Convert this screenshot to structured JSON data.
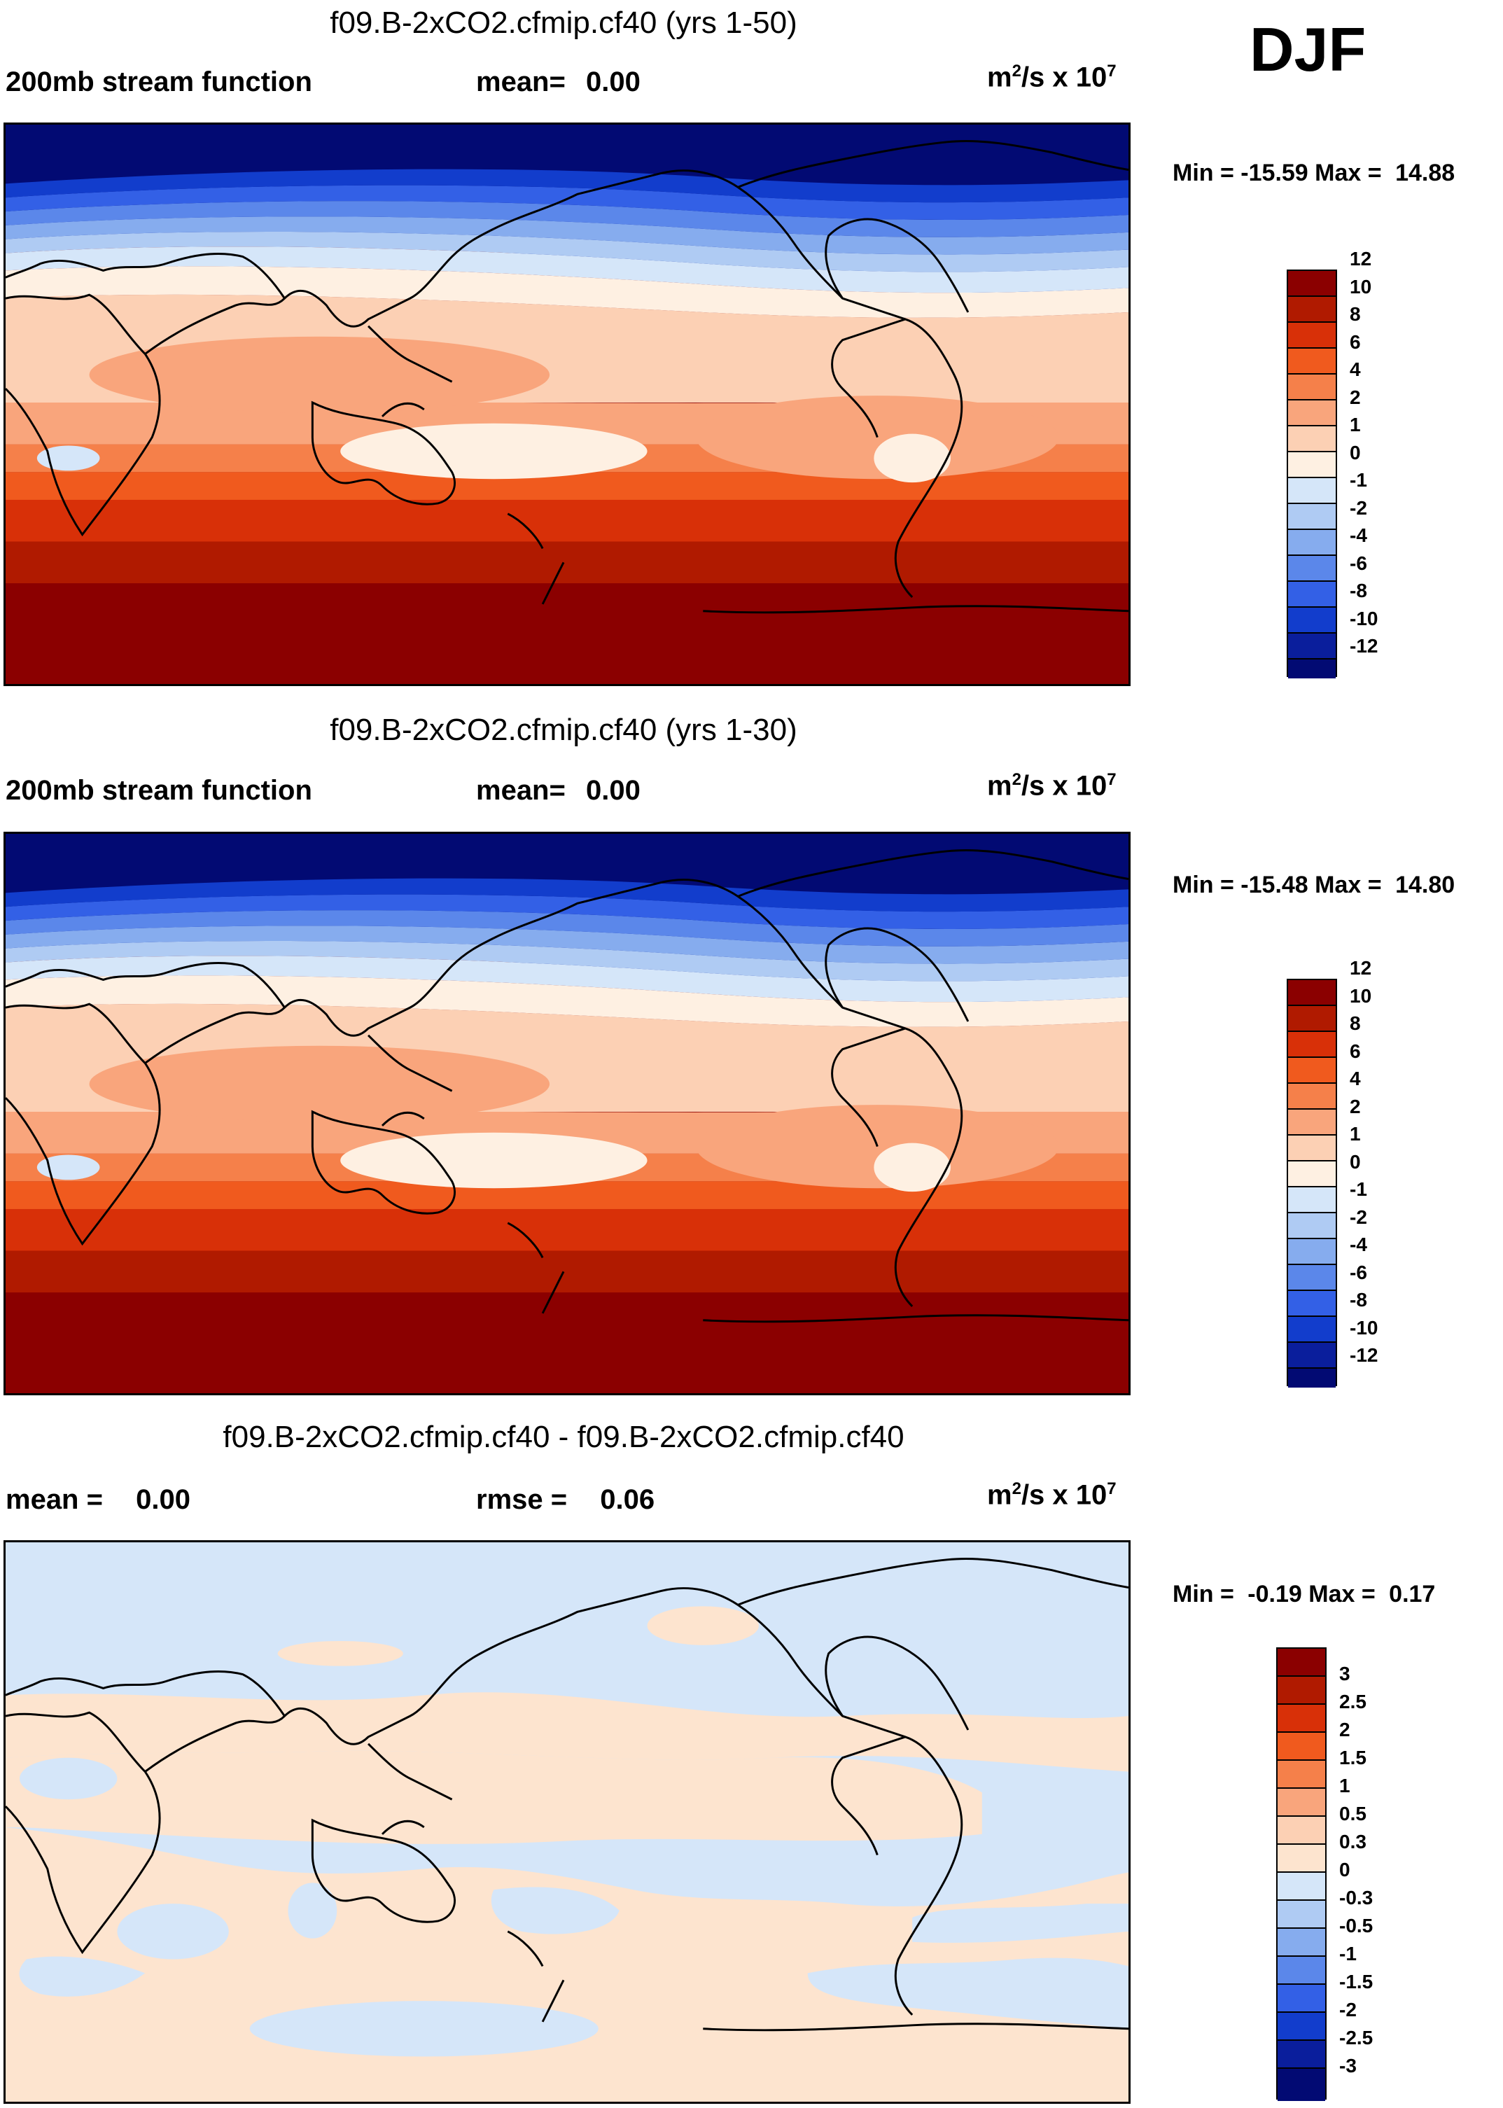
{
  "season": "DJF",
  "panels": [
    {
      "title": "f09.B-2xCO2.cfmip.cf40 (yrs 1-50)",
      "left_label": "200mb stream function",
      "mid_label": "mean=",
      "mid_value": "0.00",
      "units_base": "m",
      "units_sup": "2",
      "units_mid": "/s x 10",
      "units_exp": "7",
      "min_label": "Min =",
      "min_value": "-15.59",
      "max_label": "Max =",
      "max_value": "14.88",
      "colorbar_labels": [
        "12",
        "10",
        "8",
        "6",
        "4",
        "2",
        "1",
        "0",
        "-1",
        "-2",
        "-4",
        "-6",
        "-8",
        "-10",
        "-12"
      ]
    },
    {
      "title": "f09.B-2xCO2.cfmip.cf40 (yrs 1-30)",
      "left_label": "200mb stream function",
      "mid_label": "mean=",
      "mid_value": "0.00",
      "units_base": "m",
      "units_sup": "2",
      "units_mid": "/s x 10",
      "units_exp": "7",
      "min_label": "Min =",
      "min_value": "-15.48",
      "max_label": "Max =",
      "max_value": "14.80",
      "colorbar_labels": [
        "12",
        "10",
        "8",
        "6",
        "4",
        "2",
        "1",
        "0",
        "-1",
        "-2",
        "-4",
        "-6",
        "-8",
        "-10",
        "-12"
      ]
    },
    {
      "title": "f09.B-2xCO2.cfmip.cf40 - f09.B-2xCO2.cfmip.cf40",
      "left_label": "mean =",
      "left_value": "0.00",
      "mid_label": "rmse =",
      "mid_value": "0.06",
      "units_base": "m",
      "units_sup": "2",
      "units_mid": "/s x 10",
      "units_exp": "7",
      "min_label": "Min =",
      "min_value": "-0.19",
      "max_label": "Max =",
      "max_value": "0.17",
      "colorbar_labels": [
        "3",
        "2.5",
        "2",
        "1.5",
        "1",
        "0.5",
        "0.3",
        "0",
        "-0.3",
        "-0.5",
        "-1",
        "-1.5",
        "-2",
        "-2.5",
        "-3"
      ]
    }
  ],
  "colors": {
    "full_field": [
      "#8b0000",
      "#b01a00",
      "#d83008",
      "#f05a1e",
      "#f5804a",
      "#f9a57c",
      "#fcd0b4",
      "#fef0e2",
      "#d5e6f9",
      "#afcbf3",
      "#86acee",
      "#5b87ea",
      "#3360e6",
      "#123dcc",
      "#0a1e9c",
      "#020a73"
    ],
    "difference": [
      "#8b0000",
      "#b01a00",
      "#d83008",
      "#f05a1e",
      "#f5804a",
      "#f9a57c",
      "#fcd0b4",
      "#fde4cf",
      "#d5e6f9",
      "#afcbf3",
      "#86acee",
      "#5b87ea",
      "#3360e6",
      "#123dcc",
      "#0a1e9c",
      "#020a73"
    ],
    "diff_pos": "#fde4cf",
    "diff_neg": "#d5e6f9"
  }
}
